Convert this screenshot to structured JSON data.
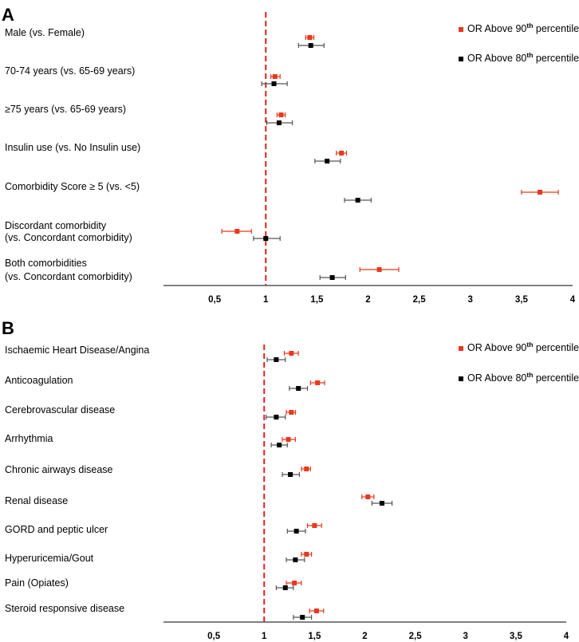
{
  "chart_data": [
    {
      "type": "scatter",
      "subtype": "forest-plot",
      "panel_label": "A",
      "xlim": [
        0,
        4
      ],
      "x_ticks": [
        0.5,
        1,
        1.5,
        2,
        2.5,
        3,
        3.5,
        4
      ],
      "x_tick_labels": [
        "0,5",
        "1",
        "1,5",
        "2",
        "2,5",
        "3",
        "3,5",
        "4"
      ],
      "reference_line": 1,
      "legend_position": "top-right",
      "rows": [
        {
          "label": [
            "Male (vs. Female)"
          ]
        },
        {
          "label": [
            "70-74 years (vs. 65-69 years)"
          ]
        },
        {
          "label": [
            "≥75 years (vs. 65-69 years)"
          ]
        },
        {
          "label": [
            "Insulin use (vs. No Insulin use)"
          ]
        },
        {
          "label": [
            "Comorbidity Score ≥ 5 (vs. <5)"
          ]
        },
        {
          "label": [
            "Discordant comorbidity",
            "(vs. Concordant comorbidity)"
          ]
        },
        {
          "label": [
            "Both comorbidities",
            "(vs. Concordant comorbidity)"
          ]
        }
      ],
      "series": [
        {
          "name_prefix": "OR Above 90",
          "name_sup": "th",
          "name_suffix": " percentile",
          "color": "#e8381c",
          "points": [
            {
              "or": 1.43,
              "lo": 1.39,
              "hi": 1.47
            },
            {
              "or": 1.09,
              "lo": 1.05,
              "hi": 1.14
            },
            {
              "or": 1.15,
              "lo": 1.11,
              "hi": 1.19
            },
            {
              "or": 1.74,
              "lo": 1.69,
              "hi": 1.79
            },
            {
              "or": 3.68,
              "lo": 3.5,
              "hi": 3.86
            },
            {
              "or": 0.72,
              "lo": 0.57,
              "hi": 0.86
            },
            {
              "or": 2.11,
              "lo": 1.92,
              "hi": 2.3
            }
          ]
        },
        {
          "name_prefix": "OR Above 80",
          "name_sup": "th",
          "name_suffix": " percentile",
          "color": "#000000",
          "points": [
            {
              "or": 1.44,
              "lo": 1.32,
              "hi": 1.57
            },
            {
              "or": 1.08,
              "lo": 0.96,
              "hi": 1.21
            },
            {
              "or": 1.13,
              "lo": 1.01,
              "hi": 1.26
            },
            {
              "or": 1.6,
              "lo": 1.48,
              "hi": 1.73
            },
            {
              "or": 1.9,
              "lo": 1.77,
              "hi": 2.03
            },
            {
              "or": 1.0,
              "lo": 0.88,
              "hi": 1.14
            },
            {
              "or": 1.65,
              "lo": 1.53,
              "hi": 1.78
            }
          ]
        }
      ]
    },
    {
      "type": "scatter",
      "subtype": "forest-plot",
      "panel_label": "B",
      "xlim": [
        0,
        4
      ],
      "x_ticks": [
        0.5,
        1,
        1.5,
        2,
        2.5,
        3,
        3.5,
        4
      ],
      "x_tick_labels": [
        "0,5",
        "1",
        "1,5",
        "2",
        "2,5",
        "3",
        "3,5",
        "4"
      ],
      "reference_line": 1,
      "legend_position": "top-right",
      "rows": [
        {
          "label": [
            "Ischaemic Heart Disease/Angina"
          ]
        },
        {
          "label": [
            "Anticoagulation"
          ]
        },
        {
          "label": [
            "Cerebrovascular disease"
          ]
        },
        {
          "label": [
            "Arrhythmia"
          ]
        },
        {
          "label": [
            "Chronic airways disease"
          ]
        },
        {
          "label": [
            "Renal disease"
          ]
        },
        {
          "label": [
            "GORD and peptic ulcer"
          ]
        },
        {
          "label": [
            "Hyperuricemia/Gout"
          ]
        },
        {
          "label": [
            "Pain (Opiates)"
          ]
        },
        {
          "label": [
            "Steroid responsive disease"
          ]
        }
      ],
      "series": [
        {
          "name_prefix": "OR Above 90",
          "name_sup": "th",
          "name_suffix": " percentile",
          "color": "#e8381c",
          "points": [
            {
              "or": 1.27,
              "lo": 1.2,
              "hi": 1.34
            },
            {
              "or": 1.53,
              "lo": 1.46,
              "hi": 1.6
            },
            {
              "or": 1.27,
              "lo": 1.22,
              "hi": 1.31
            },
            {
              "or": 1.24,
              "lo": 1.18,
              "hi": 1.31
            },
            {
              "or": 1.42,
              "lo": 1.37,
              "hi": 1.46
            },
            {
              "or": 2.03,
              "lo": 1.97,
              "hi": 2.09
            },
            {
              "or": 1.5,
              "lo": 1.43,
              "hi": 1.57
            },
            {
              "or": 1.42,
              "lo": 1.37,
              "hi": 1.47
            },
            {
              "or": 1.3,
              "lo": 1.22,
              "hi": 1.37
            },
            {
              "or": 1.52,
              "lo": 1.45,
              "hi": 1.59
            }
          ]
        },
        {
          "name_prefix": "OR Above 80",
          "name_sup": "th",
          "name_suffix": " percentile",
          "color": "#000000",
          "points": [
            {
              "or": 1.12,
              "lo": 1.03,
              "hi": 1.21
            },
            {
              "or": 1.34,
              "lo": 1.25,
              "hi": 1.43
            },
            {
              "or": 1.12,
              "lo": 1.02,
              "hi": 1.21
            },
            {
              "or": 1.15,
              "lo": 1.07,
              "hi": 1.23
            },
            {
              "or": 1.26,
              "lo": 1.18,
              "hi": 1.35
            },
            {
              "or": 2.17,
              "lo": 2.07,
              "hi": 2.27
            },
            {
              "or": 1.32,
              "lo": 1.23,
              "hi": 1.41
            },
            {
              "or": 1.31,
              "lo": 1.22,
              "hi": 1.4
            },
            {
              "or": 1.21,
              "lo": 1.12,
              "hi": 1.29
            },
            {
              "or": 1.38,
              "lo": 1.29,
              "hi": 1.47
            }
          ]
        }
      ]
    }
  ]
}
